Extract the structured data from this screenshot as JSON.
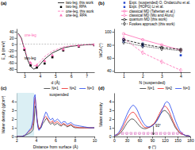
{
  "chart_data": [
    {
      "type": "line",
      "title": "(a)",
      "xlabel": "d (Å)",
      "ylabel": "E_b (meV)",
      "xlim": [
        2.5,
        7.5
      ],
      "ylim": [
        -90,
        50
      ],
      "xticks": [
        3,
        4,
        5,
        6,
        7
      ],
      "yticks": [
        -80,
        -60,
        -40,
        -20,
        0,
        20,
        40
      ],
      "legend": "top",
      "hlines": [
        0
      ],
      "annotations": [
        {
          "text": "one-leg",
          "color": "#FF69B4"
        },
        {
          "text": "two-leg",
          "color": "black"
        }
      ],
      "series": [
        {
          "name": "two-leg, this work",
          "type": "line",
          "color": "black",
          "line_style": "solid",
          "x": [
            2.6,
            2.8,
            3.0,
            3.2,
            3.4,
            3.6,
            3.8,
            4.0,
            4.3,
            4.8,
            5.5,
            6.0,
            6.5,
            7.0,
            7.5
          ],
          "values": [
            35,
            20,
            -15,
            -50,
            -72,
            -80,
            -76,
            -65,
            -48,
            -28,
            -12,
            -7,
            -4,
            -2,
            -1
          ]
        },
        {
          "name": "two-leg, RPA",
          "type": "scatter",
          "color": "black",
          "marker": "square",
          "x": [
            3.0,
            3.4,
            3.8,
            4.3,
            4.8,
            5.5,
            6.5,
            7.5
          ],
          "values": [
            -18,
            -68,
            -75,
            -62,
            -42,
            -20,
            -8,
            -3
          ]
        },
        {
          "name": "one-leg, this work",
          "type": "line",
          "color": "#FF69B4",
          "line_style": "dashed",
          "x": [
            2.6,
            2.8,
            3.0,
            3.2,
            3.4,
            3.6,
            3.8,
            4.0,
            4.3,
            4.8,
            5.5,
            6.0,
            6.5,
            7.0,
            7.5
          ],
          "values": [
            32,
            17,
            -12,
            -45,
            -63,
            -70,
            -66,
            -56,
            -40,
            -22,
            -9,
            -5,
            -3,
            -1.5,
            -0.5
          ]
        },
        {
          "name": "one-leg, RPA",
          "type": "scatter",
          "color": "#FF69B4",
          "marker": "triangle",
          "x": [
            3.0,
            3.4,
            3.8,
            4.3,
            4.8,
            5.5,
            6.5,
            7.5
          ],
          "values": [
            -14,
            -60,
            -68,
            -54,
            -36,
            -17,
            -6,
            -2
          ]
        }
      ]
    },
    {
      "type": "line",
      "title": "(b)",
      "xlabel": "N (suspended)",
      "ylabel": "WCA (°)",
      "xlim": [
        0.5,
        4.5
      ],
      "ylim": [
        38,
        105
      ],
      "xticks": [
        1,
        2,
        3,
        4
      ],
      "yticks": [
        40,
        60,
        80,
        100
      ],
      "legend": "top",
      "series": [
        {
          "name": "Expt. (suspended) O. Ondarcuhu et al.",
          "type": "scatter",
          "color": "#2244CC",
          "marker": "square",
          "x": [
            1,
            2
          ],
          "values": [
            87,
            80
          ],
          "errors": [
            3,
            3
          ]
        },
        {
          "name": "Expt. (HOPG) Li et al.",
          "type": "scatter",
          "color": "#2244CC",
          "marker": "square",
          "x": [
            4
          ],
          "values": [
            64
          ]
        },
        {
          "name": "classical MD (Taherian et al.)",
          "type": "line",
          "color": "#FF69B4",
          "line_style": "solid",
          "marker": "circle",
          "x": [
            1,
            2,
            3,
            4
          ],
          "values": [
            97,
            88,
            80,
            72
          ]
        },
        {
          "name": "classical MD (Wu and Aluru)",
          "type": "line",
          "color": "#FF69B4",
          "line_style": "dashed",
          "marker": "diamond",
          "x": [
            1,
            2,
            3,
            4
          ],
          "values": [
            90,
            68,
            54,
            41
          ]
        },
        {
          "name": "quantum MD (this work)",
          "type": "line",
          "color": "black",
          "line_style": "dashed",
          "marker": "circle",
          "x": [
            1,
            2,
            3,
            4
          ],
          "values": [
            88,
            81,
            76,
            73
          ]
        },
        {
          "name": "Fowkes approach (this work)",
          "type": "line",
          "color": "black",
          "line_style": "dotted",
          "marker": "diamond",
          "x": [
            1,
            2,
            3,
            4
          ],
          "values": [
            84,
            78,
            74,
            71
          ]
        }
      ]
    },
    {
      "type": "line",
      "title": "(c)",
      "xlabel": "Distance from surface (Å)",
      "ylabel": "Water density (g/cm³)",
      "xlim": [
        2,
        10
      ],
      "ylim": [
        0,
        5
      ],
      "xticks": [
        2,
        4,
        6,
        8,
        10
      ],
      "yticks": [
        0,
        1,
        2,
        3,
        4
      ],
      "legend": "top",
      "shaded_region": {
        "x": [
          2.0,
          3.8
        ],
        "color": "#cce8f0"
      },
      "annotations": [
        {
          "text": "suspended"
        }
      ],
      "x": [
        2.0,
        2.2,
        2.5,
        2.8,
        3.0,
        3.2,
        3.5,
        3.7,
        3.8,
        3.9,
        4.0,
        4.1,
        4.2,
        4.3,
        4.5,
        4.7,
        4.9,
        5.0,
        5.1,
        5.2,
        5.3,
        5.4,
        5.5,
        5.6,
        5.7,
        5.8,
        5.9,
        6.0,
        6.2,
        6.4,
        6.6,
        6.8,
        7.0,
        7.2,
        7.4,
        7.6,
        7.8,
        8.0,
        8.5,
        9.0,
        9.5,
        10.0
      ],
      "series": [
        {
          "name": "N=1",
          "color": "#333333",
          "values": [
            0,
            0,
            0,
            0.1,
            0.2,
            0.3,
            0.5,
            0.8,
            1.8,
            3.5,
            3.2,
            2.0,
            1.3,
            0.9,
            1.0,
            1.5,
            1.8,
            2.0,
            2.1,
            1.9,
            1.7,
            1.5,
            1.4,
            1.5,
            1.6,
            1.4,
            1.3,
            1.4,
            1.5,
            1.3,
            1.2,
            1.4,
            1.3,
            1.1,
            1.2,
            1.3,
            1.1,
            1.0,
            1.0,
            1.0,
            1.0,
            1.0
          ]
        },
        {
          "name": "N=2",
          "color": "#EE2222",
          "values": [
            0,
            0,
            0,
            0.1,
            0.3,
            0.5,
            0.8,
            1.5,
            3.5,
            4.5,
            3.5,
            2.0,
            1.2,
            0.8,
            1.2,
            1.8,
            2.2,
            2.3,
            2.2,
            2.0,
            1.8,
            1.7,
            1.6,
            1.7,
            1.8,
            1.6,
            1.5,
            1.6,
            1.7,
            1.5,
            1.3,
            1.5,
            1.4,
            1.2,
            1.3,
            1.4,
            1.2,
            1.1,
            1.0,
            1.0,
            1.0,
            1.0
          ]
        },
        {
          "name": "N=3",
          "color": "#2244EE",
          "values": [
            0,
            0,
            0,
            0.1,
            0.3,
            0.6,
            1.0,
            2.0,
            4.5,
            4.8,
            3.2,
            1.8,
            1.0,
            0.7,
            1.0,
            1.8,
            2.5,
            2.8,
            2.7,
            2.4,
            2.2,
            2.0,
            1.9,
            2.0,
            2.1,
            1.9,
            1.7,
            1.8,
            2.0,
            1.8,
            1.5,
            1.7,
            1.7,
            1.4,
            1.5,
            1.6,
            1.4,
            1.3,
            1.2,
            1.1,
            1.0,
            1.0
          ]
        }
      ]
    },
    {
      "type": "line",
      "title": "(d)",
      "xlabel": "φ (°)",
      "ylabel": "Water density",
      "xlim": [
        0,
        180
      ],
      "ylim": [
        0,
        5
      ],
      "xticks": [
        0,
        30,
        60,
        90,
        120,
        150,
        180
      ],
      "yticks": [
        0,
        1,
        2,
        3,
        4
      ],
      "legend": "top",
      "annotations": [
        {
          "text": "93°",
          "x": 93,
          "y_from": 1.2,
          "y_to": 0.2
        }
      ],
      "x": [
        0,
        5,
        10,
        15,
        20,
        25,
        30,
        35,
        40,
        45,
        50,
        55,
        60,
        65,
        70,
        75,
        80,
        85,
        90,
        95,
        100,
        105,
        110,
        115,
        120,
        125,
        130,
        135,
        140,
        145,
        150,
        155,
        160,
        165,
        170,
        175,
        180
      ],
      "series": [
        {
          "name": "N=1",
          "color": "#333333",
          "values": [
            0.1,
            0.1,
            0.2,
            0.4,
            0.7,
            1.1,
            1.5,
            1.8,
            2.0,
            2.0,
            1.8,
            1.5,
            1.2,
            1.0,
            0.9,
            0.9,
            1.0,
            1.1,
            1.3,
            1.5,
            1.8,
            2.2,
            2.6,
            2.9,
            3.0,
            2.8,
            2.5,
            2.0,
            1.5,
            1.0,
            0.7,
            0.4,
            0.3,
            0.2,
            0.1,
            0.1,
            0.0
          ]
        },
        {
          "name": "N=2",
          "color": "#EE2222",
          "values": [
            0.1,
            0.2,
            0.3,
            0.6,
            1.0,
            1.5,
            2.0,
            2.4,
            2.7,
            2.8,
            2.6,
            2.2,
            1.8,
            1.4,
            1.1,
            1.0,
            1.0,
            1.1,
            1.3,
            1.5,
            1.9,
            2.4,
            2.9,
            3.3,
            3.5,
            3.3,
            2.9,
            2.3,
            1.7,
            1.2,
            0.8,
            0.5,
            0.3,
            0.2,
            0.1,
            0.1,
            0.0
          ]
        },
        {
          "name": "N=3",
          "color": "#2244EE",
          "values": [
            0.1,
            0.2,
            0.4,
            0.8,
            1.3,
            1.9,
            2.5,
            3.0,
            3.4,
            3.6,
            3.4,
            3.0,
            2.4,
            1.9,
            1.5,
            1.2,
            1.1,
            1.1,
            1.2,
            1.4,
            1.7,
            2.1,
            2.6,
            3.2,
            3.8,
            4.0,
            3.8,
            3.2,
            2.5,
            1.8,
            1.2,
            0.7,
            0.4,
            0.2,
            0.1,
            0.1,
            0.0
          ]
        },
        {
          "type": "scatter",
          "color": "#CC44AA",
          "marker": "x",
          "x": [
            20,
            30,
            40,
            50,
            60,
            70,
            80,
            90,
            100,
            110,
            120,
            130,
            140,
            150,
            160
          ],
          "values": [
            0.35,
            0.35,
            0.35,
            0.35,
            0.35,
            0.35,
            0.35,
            0.35,
            0.35,
            0.35,
            0.35,
            0.35,
            0.35,
            0.35,
            0.35
          ]
        }
      ]
    }
  ]
}
